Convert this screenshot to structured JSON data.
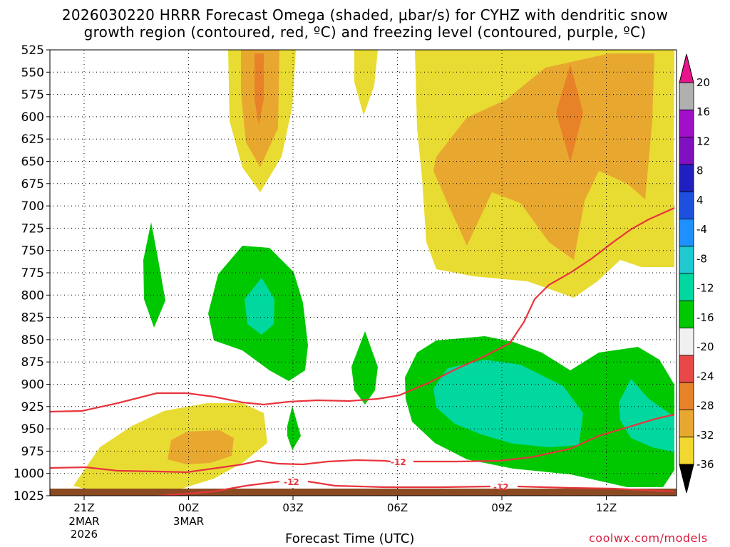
{
  "chart_data": {
    "type": "contour",
    "title_line1": "2026030220 HRRR Forecast Omega (shaded, μbar/s) for CYHZ with dendritic snow",
    "title_line2": "growth region (contoured, red, ºC) and freezing level (contoured, purple, ºC)",
    "xlabel": "Forecast Time (UTC)",
    "y_ticks": [
      "525",
      "550",
      "575",
      "600",
      "625",
      "650",
      "675",
      "700",
      "725",
      "750",
      "775",
      "800",
      "825",
      "850",
      "875",
      "900",
      "925",
      "950",
      "975",
      "1000",
      "1025"
    ],
    "x_ticks": [
      {
        "label": "21Z",
        "sub1": "2MAR",
        "sub2": "2026"
      },
      {
        "label": "00Z",
        "sub1": "3MAR",
        "sub2": ""
      },
      {
        "label": "03Z",
        "sub1": "",
        "sub2": ""
      },
      {
        "label": "06Z",
        "sub1": "",
        "sub2": ""
      },
      {
        "label": "09Z",
        "sub1": "",
        "sub2": ""
      },
      {
        "label": "12Z",
        "sub1": "",
        "sub2": ""
      }
    ],
    "colorbar_ticks": [
      "20",
      "16",
      "12",
      "8",
      "4",
      "-4",
      "-8",
      "-12",
      "-16",
      "-20",
      "-24",
      "-28",
      "-32",
      "-36"
    ],
    "colorbar_colors": [
      "#f0d830",
      "#e8a830",
      "#e88228",
      "#e84848",
      "#f0f0f0",
      "#00c800",
      "#00d8a0",
      "#20c8d0",
      "#1e90ff",
      "#1e50e0",
      "#2020c0",
      "#8010c0",
      "#a010c8",
      "#b0b0b0"
    ],
    "contour_labels": [
      "-12",
      "-12",
      "-12"
    ],
    "series": [
      {
        "name": "dendritic snow growth region -12ºC (red contour)",
        "color": "#e8343c"
      }
    ]
  },
  "credit": "coolwx.com/models"
}
